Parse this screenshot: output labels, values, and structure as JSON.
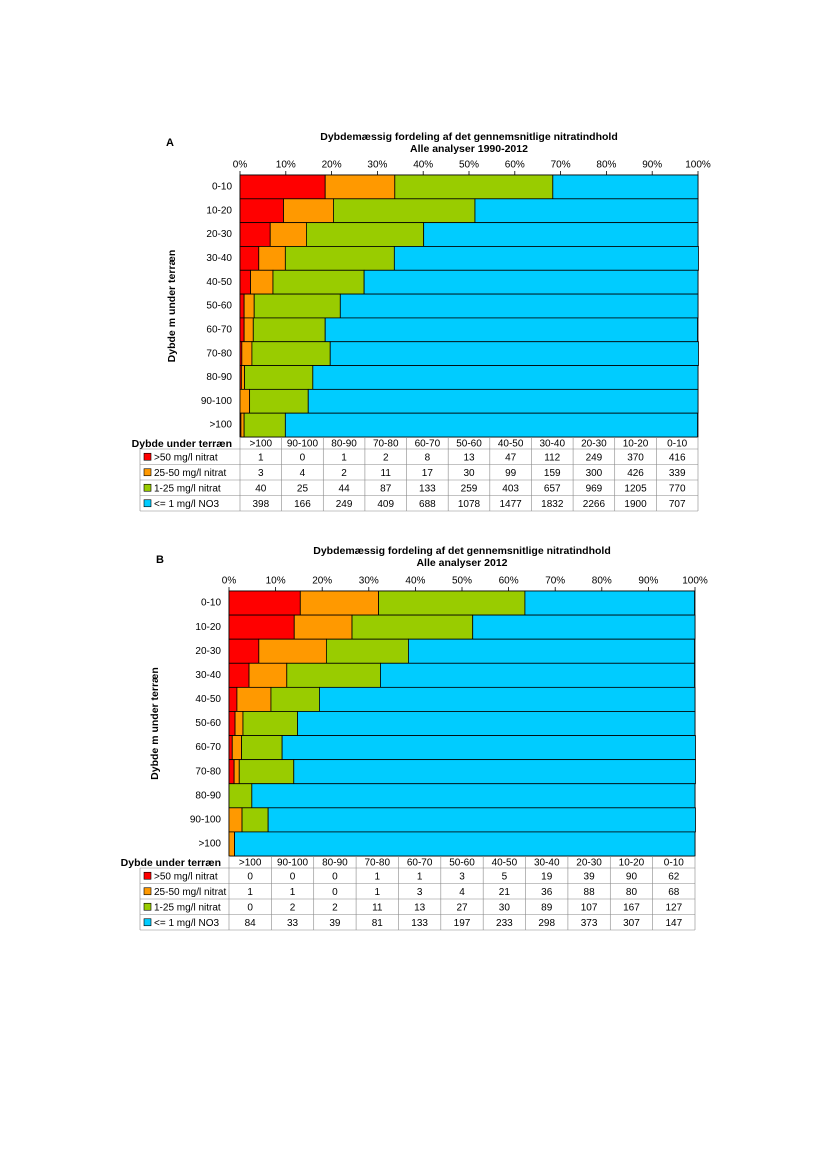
{
  "chart_data": [
    {
      "type": "bar",
      "panel": "A",
      "title": "Dybdemæssig fordeling af det gennemsnitlige nitratindhold",
      "subtitle": "Alle analyser 1990-2012",
      "y_label": "Dybde m under terræn",
      "table_label": "Dybde under terræn",
      "categories": [
        "0-10",
        "10-20",
        "20-30",
        "30-40",
        "40-50",
        "50-60",
        "60-70",
        "70-80",
        "80-90",
        "90-100",
        ">100"
      ],
      "xlim": [
        0,
        100
      ],
      "xticks": [
        {
          "value": 0,
          "label": "0%"
        },
        {
          "value": 10,
          "label": "10%"
        },
        {
          "value": 20,
          "label": "20%"
        },
        {
          "value": 30,
          "label": "30%"
        },
        {
          "value": 40,
          "label": "40%"
        },
        {
          "value": 50,
          "label": "50%"
        },
        {
          "value": 60,
          "label": "60%"
        },
        {
          "value": 70,
          "label": "70%"
        },
        {
          "value": 80,
          "label": "80%"
        },
        {
          "value": 90,
          "label": "90%"
        },
        {
          "value": 100,
          "label": "100%"
        }
      ],
      "stacked": true,
      "series": [
        {
          "name": ">50 mg/l nitrat",
          "color": "#ff0000",
          "values": [
            18.6,
            9.5,
            6.6,
            4.1,
            2.3,
            0.9,
            0.9,
            0.4,
            0.3,
            0,
            0.2
          ]
        },
        {
          "name": "25-50 mg/l nitrat",
          "color": "#ff9900",
          "values": [
            15.2,
            10.9,
            7.9,
            5.8,
            4.9,
            2.2,
            2.0,
            2.2,
            0.7,
            2.1,
            0.7
          ]
        },
        {
          "name": "1-25 mg/l nitrat",
          "color": "#99cc00",
          "values": [
            34.5,
            30.9,
            25.6,
            23.8,
            19.9,
            18.8,
            15.7,
            17.1,
            14.9,
            12.8,
            9.0
          ]
        },
        {
          "name": "<= 1 mg/l NO3",
          "color": "#00ccff",
          "values": [
            31.7,
            48.7,
            59.9,
            66.4,
            72.9,
            78.1,
            81.3,
            80.4,
            84.1,
            85.1,
            90.0
          ]
        }
      ],
      "table": {
        "columns": [
          ">100",
          "90-100",
          "80-90",
          "70-80",
          "60-70",
          "50-60",
          "40-50",
          "30-40",
          "20-30",
          "10-20",
          "0-10"
        ],
        "rows": [
          [
            1,
            0,
            1,
            2,
            8,
            13,
            47,
            112,
            249,
            370,
            416
          ],
          [
            3,
            4,
            2,
            11,
            17,
            30,
            99,
            159,
            300,
            426,
            339
          ],
          [
            40,
            25,
            44,
            87,
            133,
            259,
            403,
            657,
            969,
            1205,
            770
          ],
          [
            398,
            166,
            249,
            409,
            688,
            1078,
            1477,
            1832,
            2266,
            1900,
            707
          ]
        ]
      }
    },
    {
      "type": "bar",
      "panel": "B",
      "title": "Dybdemæssig fordeling af det gennemsnitlige nitratindhold",
      "subtitle": "Alle analyser 2012",
      "y_label": "Dybde m under terræn",
      "table_label": "Dybde under terræn",
      "categories": [
        "0-10",
        "10-20",
        "20-30",
        "30-40",
        "40-50",
        "50-60",
        "60-70",
        "70-80",
        "80-90",
        "90-100",
        ">100"
      ],
      "xlim": [
        0,
        100
      ],
      "xticks": [
        {
          "value": 0,
          "label": "0%"
        },
        {
          "value": 10,
          "label": "10%"
        },
        {
          "value": 20,
          "label": "20%"
        },
        {
          "value": 30,
          "label": "30%"
        },
        {
          "value": 40,
          "label": "40%"
        },
        {
          "value": 50,
          "label": "50%"
        },
        {
          "value": 60,
          "label": "60%"
        },
        {
          "value": 70,
          "label": "70%"
        },
        {
          "value": 80,
          "label": "80%"
        },
        {
          "value": 90,
          "label": "90%"
        },
        {
          "value": 100,
          "label": "100%"
        }
      ],
      "stacked": true,
      "series": [
        {
          "name": ">50 mg/l nitrat",
          "color": "#ff0000",
          "values": [
            15.3,
            14.0,
            6.4,
            4.3,
            1.7,
            1.3,
            0.7,
            1.1,
            0,
            0,
            0
          ]
        },
        {
          "name": "25-50 mg/l nitrat",
          "color": "#ff9900",
          "values": [
            16.8,
            12.4,
            14.5,
            8.1,
            7.3,
            1.7,
            2.0,
            1.1,
            0,
            2.8,
            1.2
          ]
        },
        {
          "name": "1-25 mg/l nitrat",
          "color": "#99cc00",
          "values": [
            31.4,
            25.9,
            17.6,
            20.1,
            10.4,
            11.7,
            8.7,
            11.7,
            4.9,
            5.6,
            0
          ]
        },
        {
          "name": "<= 1 mg/l NO3",
          "color": "#00ccff",
          "values": [
            36.4,
            47.7,
            61.4,
            67.4,
            80.6,
            85.3,
            88.7,
            86.2,
            95.1,
            91.7,
            98.8
          ]
        }
      ],
      "table": {
        "columns": [
          ">100",
          "90-100",
          "80-90",
          "70-80",
          "60-70",
          "50-60",
          "40-50",
          "30-40",
          "20-30",
          "10-20",
          "0-10"
        ],
        "rows": [
          [
            0,
            0,
            0,
            1,
            1,
            3,
            5,
            19,
            39,
            90,
            62
          ],
          [
            1,
            1,
            0,
            1,
            3,
            4,
            21,
            36,
            88,
            80,
            68
          ],
          [
            0,
            2,
            2,
            11,
            13,
            27,
            30,
            89,
            107,
            167,
            127
          ],
          [
            84,
            33,
            39,
            81,
            133,
            197,
            233,
            298,
            373,
            307,
            147
          ]
        ]
      }
    }
  ]
}
